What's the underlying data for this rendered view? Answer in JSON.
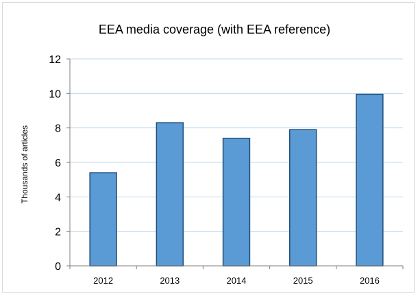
{
  "chart_data": {
    "type": "bar",
    "title": "EEA media coverage (with  EEA reference)",
    "xlabel": "",
    "ylabel": "Thousands of articles",
    "categories": [
      "2012",
      "2013",
      "2014",
      "2015",
      "2016"
    ],
    "values": [
      5.4,
      8.3,
      7.4,
      7.9,
      9.95
    ],
    "ylim": [
      0,
      12
    ],
    "yticks": [
      "0",
      "2",
      "4",
      "6",
      "8",
      "10",
      "12"
    ],
    "grid": true,
    "legend": "none",
    "colors": {
      "bar_fill": "#5b9bd5",
      "bar_stroke": "#1f4e79",
      "grid": "#bfd7ee",
      "axis": "#7f7f7f"
    }
  }
}
